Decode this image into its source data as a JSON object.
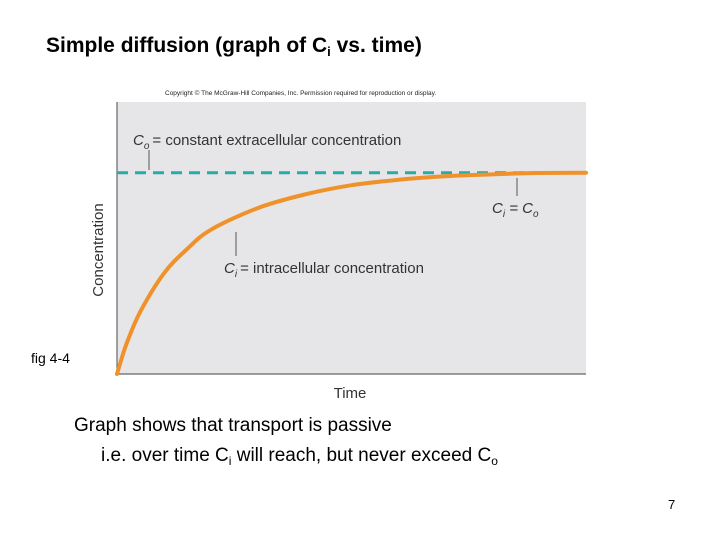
{
  "slide": {
    "title_main": "Simple diffusion (graph of C",
    "title_sub": "i",
    "title_end": " vs. time)",
    "copyright": "Copyright © The McGraw-Hill Companies, Inc. Permission required for reproduction or display.",
    "fig_label": "fig 4-4",
    "caption_line1": "Graph shows that transport is passive",
    "caption_line2_pre": "i.e. over time C",
    "caption_line2_sub1": "i",
    "caption_line2_mid": " will reach, but never exceed C",
    "caption_line2_sub2": "o",
    "page_number": "7"
  },
  "chart_data": {
    "type": "line",
    "title": "",
    "xlabel": "Time",
    "ylabel": "Concentration",
    "xlim": [
      0,
      1
    ],
    "ylim": [
      0,
      1
    ],
    "grid": false,
    "series": [
      {
        "label_symbol": "C",
        "label_sub": "o",
        "label_text": "= constant extracellular concentration",
        "color": "#2aa9a9",
        "style": "dashed",
        "x": [
          0,
          1
        ],
        "y": [
          0.74,
          0.74
        ]
      },
      {
        "label_symbol": "C",
        "label_sub": "i",
        "label_text": "= intracellular concentration",
        "color": "#f0922b",
        "style": "solid",
        "x": [
          0.0,
          0.02,
          0.05,
          0.1,
          0.15,
          0.2,
          0.3,
          0.4,
          0.5,
          0.6,
          0.7,
          0.8,
          0.85,
          0.9,
          1.0
        ],
        "y": [
          0.0,
          0.11,
          0.23,
          0.37,
          0.46,
          0.53,
          0.61,
          0.66,
          0.694,
          0.714,
          0.727,
          0.734,
          0.737,
          0.739,
          0.74
        ]
      }
    ],
    "annotations": [
      {
        "text": "C",
        "sub": "i",
        "text2": " = C",
        "sub2": "o"
      }
    ],
    "colors": {
      "plot_background": "#e6e6e8",
      "axis": "#666666"
    }
  }
}
